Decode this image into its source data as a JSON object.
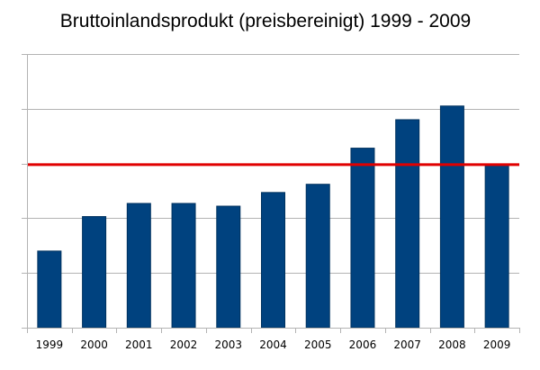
{
  "chart_data": {
    "type": "bar",
    "title": "Bruttoinlandsprodukt (preisbereinigt) 1999 - 2009",
    "xlabel": "",
    "ylabel": "",
    "categories": [
      "1999",
      "2000",
      "2001",
      "2002",
      "2003",
      "2004",
      "2005",
      "2006",
      "2007",
      "2008",
      "2009"
    ],
    "series": [
      {
        "values": [
          1.4,
          2.03,
          2.27,
          2.27,
          2.22,
          2.47,
          2.62,
          3.28,
          3.8,
          4.05,
          2.97
        ]
      }
    ],
    "reference_line": {
      "value": 2.98,
      "color": "#e00000"
    },
    "ylim": [
      0,
      5
    ],
    "y_ticks_count": 5,
    "y_tick_labels_shown": false,
    "grid": true,
    "legend": "none",
    "colors": {
      "bar": "#00427f",
      "bar_outline": "#00325f",
      "grid": "#b3b3b3",
      "axis": "#b3b3b3",
      "reference": "#e00000"
    }
  }
}
